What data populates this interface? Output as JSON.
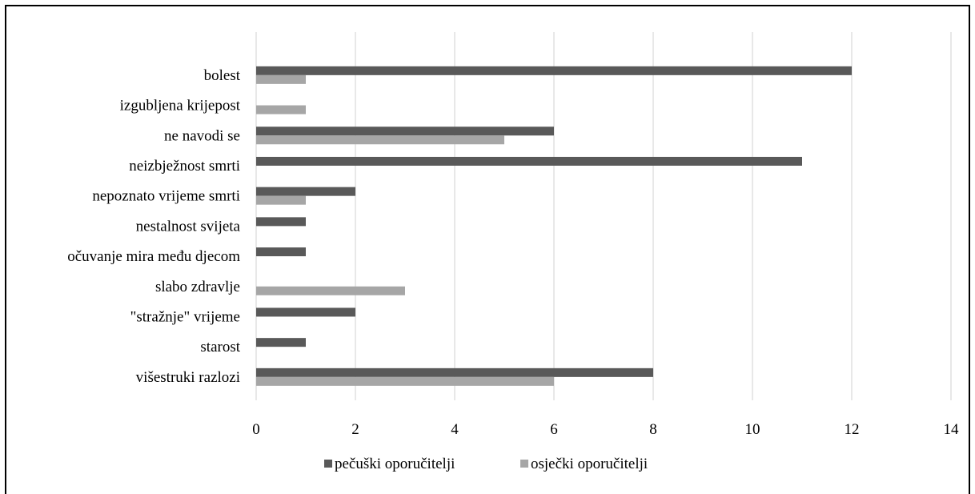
{
  "chart_data": {
    "type": "bar",
    "orientation": "horizontal",
    "categories": [
      "bolest",
      "izgubljena krijepost",
      "ne navodi se",
      "neizbježnost smrti",
      "nepoznato vrijeme smrti",
      "nestalnost svijeta",
      "očuvanje mira među djecom",
      "slabo zdravlje",
      "\"stražnje\" vrijeme",
      "starost",
      "višestruki razlozi"
    ],
    "series": [
      {
        "name": "pečuški oporučitelji",
        "color": "#595959",
        "values": [
          12,
          0,
          6,
          11,
          2,
          1,
          1,
          0,
          2,
          1,
          8
        ]
      },
      {
        "name": "osječki oporučitelji",
        "color": "#a6a6a6",
        "values": [
          1,
          1,
          5,
          0,
          1,
          0,
          0,
          3,
          0,
          0,
          6
        ]
      }
    ],
    "xlim": [
      0,
      14
    ],
    "xticks": [
      "0",
      "2",
      "4",
      "6",
      "8",
      "10",
      "12",
      "14"
    ],
    "grid": true,
    "legend_position": "bottom"
  }
}
